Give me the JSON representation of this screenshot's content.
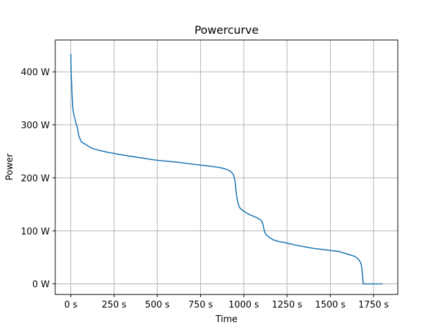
{
  "chart_data": {
    "type": "line",
    "title": "Powercurve",
    "xlabel": "Time",
    "ylabel": "Power",
    "xlim": [
      -90,
      1890
    ],
    "ylim": [
      -20,
      460
    ],
    "grid": true,
    "x_ticks": [
      {
        "value": 0,
        "label": "0 s"
      },
      {
        "value": 250,
        "label": "250 s"
      },
      {
        "value": 500,
        "label": "500 s"
      },
      {
        "value": 750,
        "label": "750 s"
      },
      {
        "value": 1000,
        "label": "1000 s"
      },
      {
        "value": 1250,
        "label": "1250 s"
      },
      {
        "value": 1500,
        "label": "1500 s"
      },
      {
        "value": 1750,
        "label": "1750 s"
      }
    ],
    "y_ticks": [
      {
        "value": 0,
        "label": "0 W"
      },
      {
        "value": 100,
        "label": "100 W"
      },
      {
        "value": 200,
        "label": "200 W"
      },
      {
        "value": 300,
        "label": "300 W"
      },
      {
        "value": 400,
        "label": "400 W"
      }
    ],
    "series": [
      {
        "color": "#1f77b4",
        "x": [
          0,
          2,
          5,
          8,
          12,
          18,
          25,
          30,
          35,
          40,
          45,
          50,
          60,
          70,
          80,
          100,
          120,
          150,
          200,
          250,
          300,
          400,
          500,
          600,
          700,
          800,
          850,
          880,
          900,
          920,
          930,
          940,
          945,
          950,
          955,
          960,
          965,
          970,
          980,
          1000,
          1030,
          1060,
          1080,
          1100,
          1110,
          1115,
          1120,
          1130,
          1150,
          1170,
          1200,
          1250,
          1300,
          1350,
          1400,
          1450,
          1500,
          1550,
          1600,
          1620,
          1640,
          1660,
          1670,
          1675,
          1680,
          1685,
          1690,
          1700,
          1750,
          1800
        ],
        "y": [
          433,
          395,
          375,
          350,
          330,
          318,
          310,
          302,
          298,
          292,
          280,
          276,
          268,
          266,
          264,
          260,
          256,
          253,
          249,
          246,
          243,
          238,
          233,
          230,
          226,
          222,
          220,
          218,
          216,
          213,
          210,
          206,
          200,
          192,
          175,
          162,
          155,
          148,
          142,
          137,
          131,
          127,
          124,
          120,
          113,
          105,
          98,
          92,
          87,
          83,
          80,
          77,
          73,
          70,
          67,
          65,
          63,
          61,
          56,
          54,
          52,
          47,
          43,
          40,
          35,
          20,
          0,
          0,
          0,
          0
        ]
      }
    ]
  }
}
